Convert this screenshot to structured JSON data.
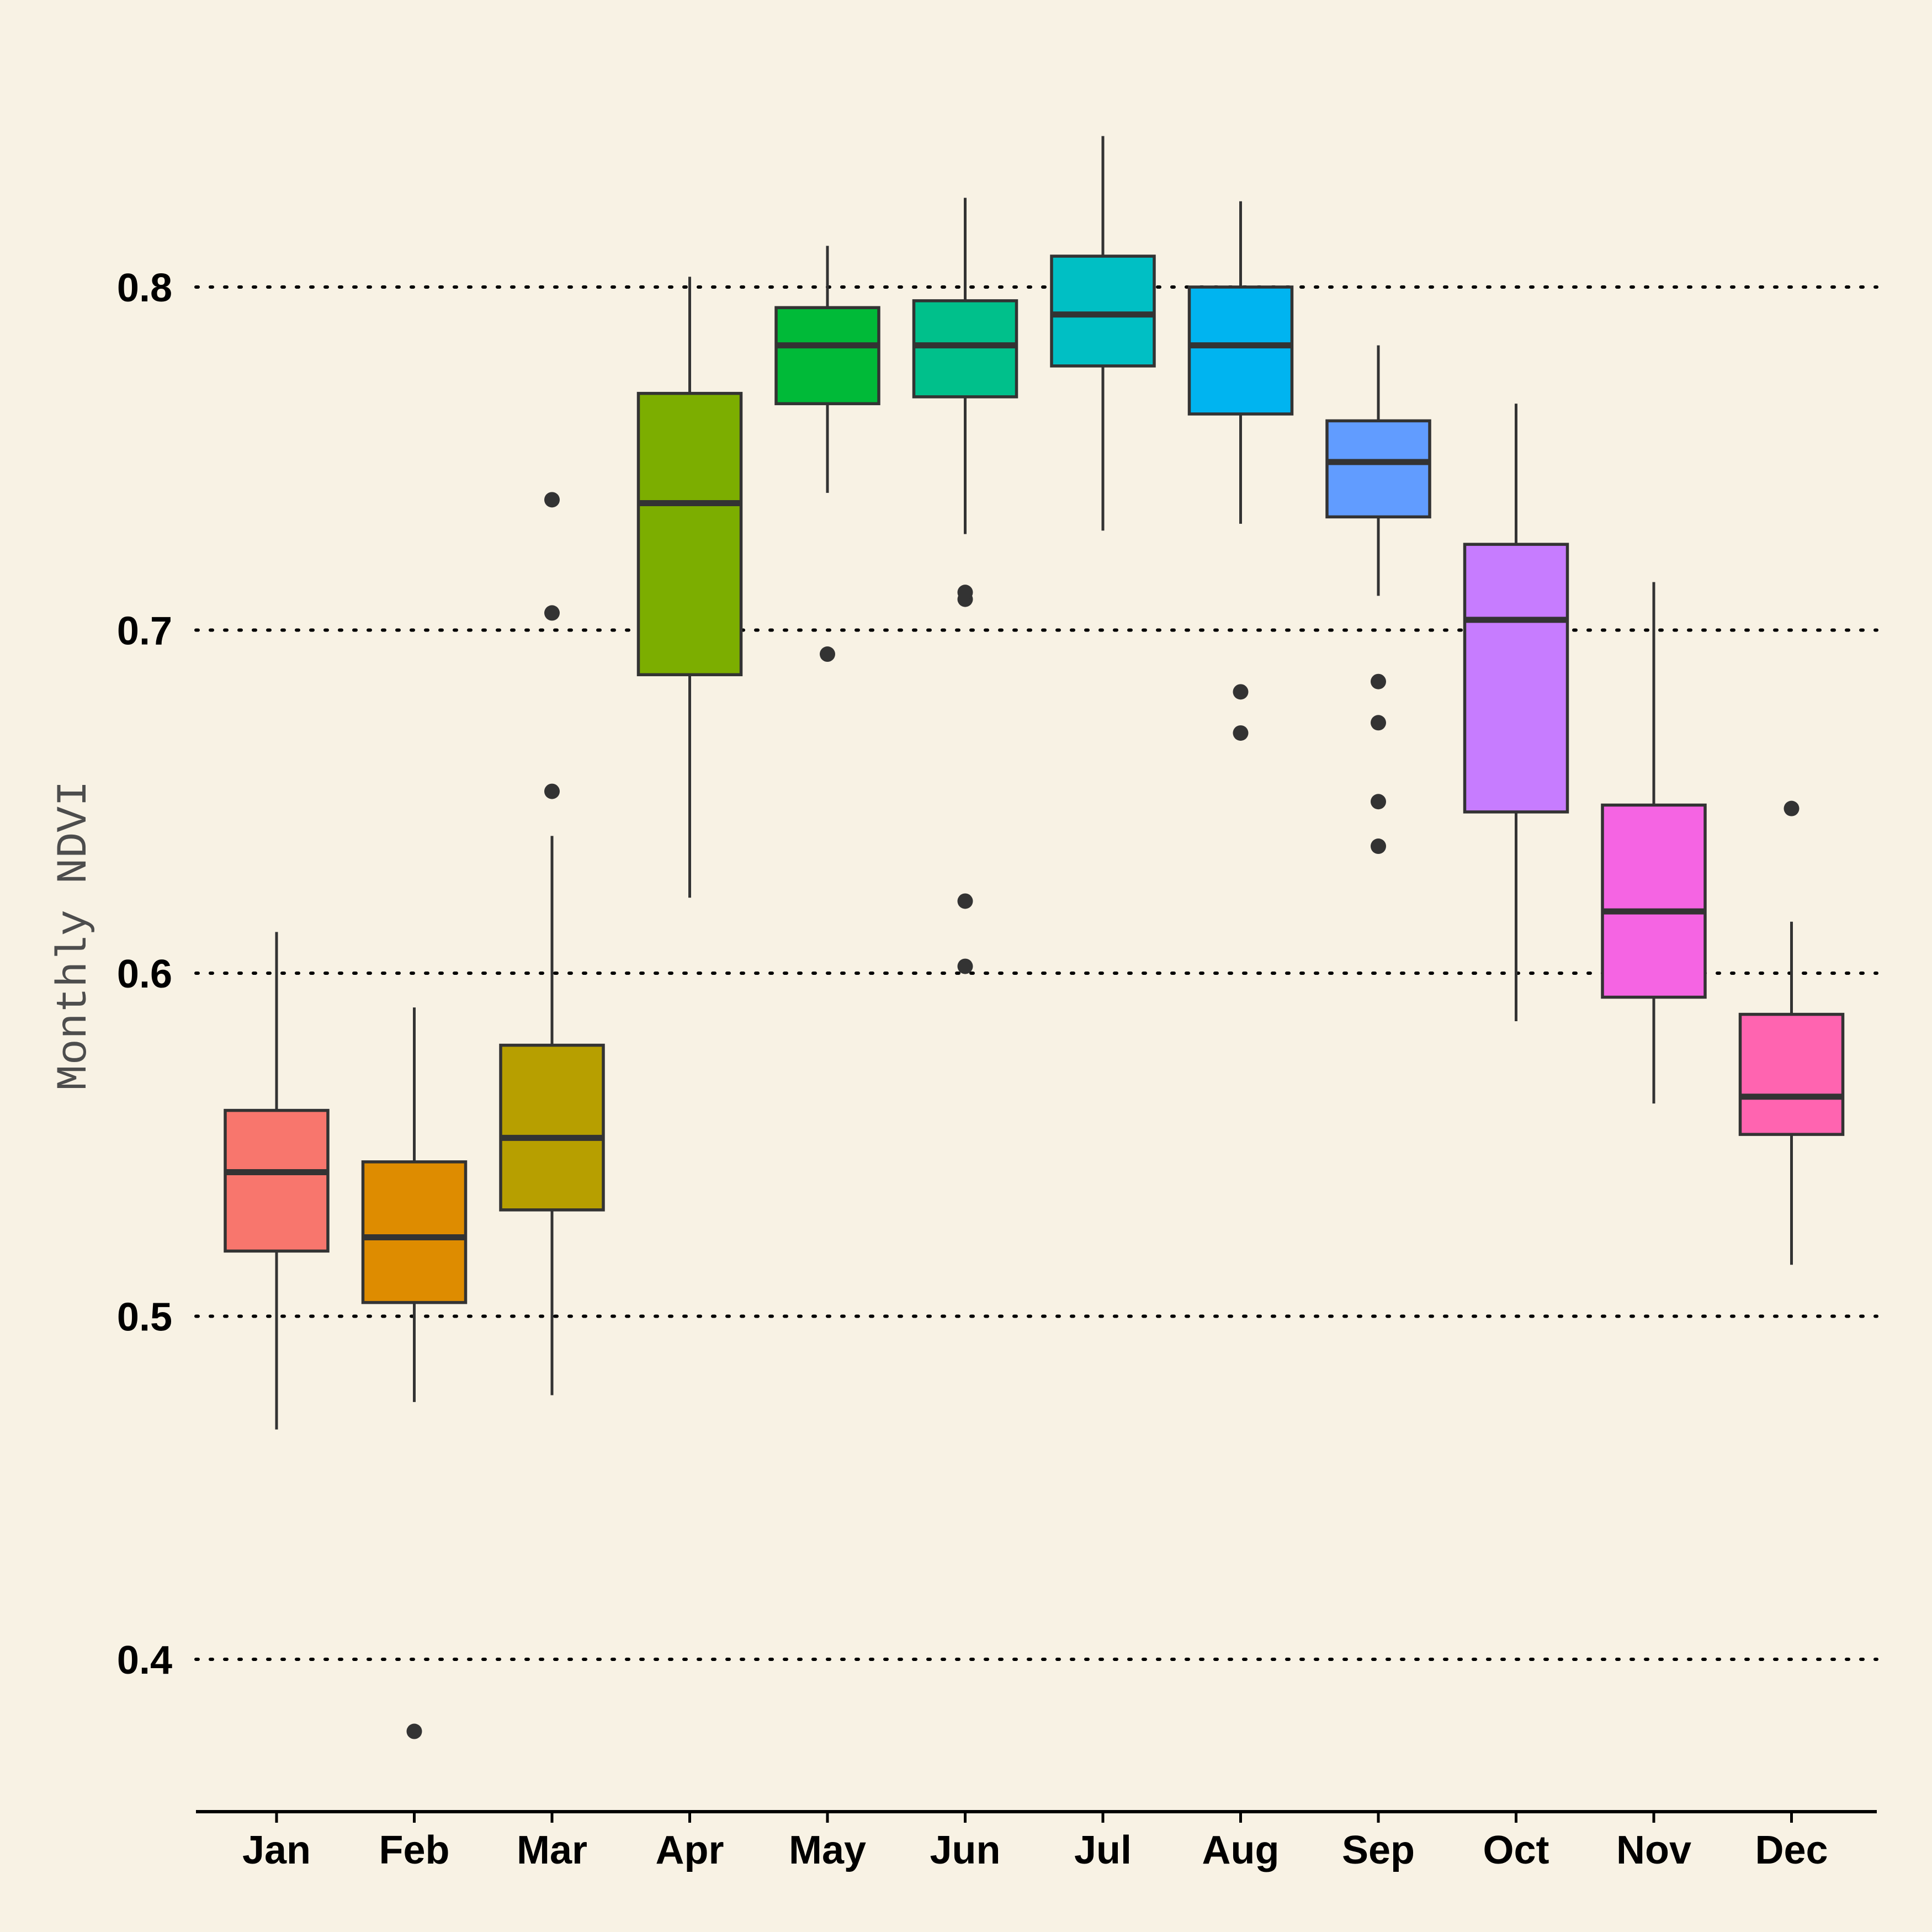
{
  "chart_data": {
    "type": "boxplot",
    "title": "",
    "xlabel": "",
    "ylabel": "Monthly NDVI",
    "ylim": [
      0.355,
      0.855
    ],
    "yticks": [
      0.4,
      0.5,
      0.6,
      0.7,
      0.8
    ],
    "ytick_labels": [
      "0.4",
      "0.5",
      "0.6",
      "0.7",
      "0.8"
    ],
    "grid": "horizontal dotted",
    "legend": "none",
    "categories": [
      "Jan",
      "Feb",
      "Mar",
      "Apr",
      "May",
      "Jun",
      "Jul",
      "Aug",
      "Sep",
      "Oct",
      "Nov",
      "Dec"
    ],
    "boxes": [
      {
        "month": "Jan",
        "whisker_low": 0.467,
        "q1": 0.519,
        "median": 0.542,
        "q3": 0.56,
        "whisker_high": 0.612,
        "outliers": [],
        "color": "#F8766D"
      },
      {
        "month": "Feb",
        "whisker_low": 0.475,
        "q1": 0.504,
        "median": 0.523,
        "q3": 0.545,
        "whisker_high": 0.59,
        "outliers": [
          0.379
        ],
        "color": "#DE8C00"
      },
      {
        "month": "Mar",
        "whisker_low": 0.477,
        "q1": 0.531,
        "median": 0.552,
        "q3": 0.579,
        "whisker_high": 0.64,
        "outliers": [
          0.653,
          0.705,
          0.738
        ],
        "color": "#B79F00"
      },
      {
        "month": "Apr",
        "whisker_low": 0.622,
        "q1": 0.687,
        "median": 0.737,
        "q3": 0.769,
        "whisker_high": 0.803,
        "outliers": [],
        "color": "#7CAE00"
      },
      {
        "month": "May",
        "whisker_low": 0.74,
        "q1": 0.766,
        "median": 0.783,
        "q3": 0.794,
        "whisker_high": 0.812,
        "outliers": [
          0.693
        ],
        "color": "#00BA38"
      },
      {
        "month": "Jun",
        "whisker_low": 0.728,
        "q1": 0.768,
        "median": 0.783,
        "q3": 0.796,
        "whisker_high": 0.826,
        "outliers": [
          0.602,
          0.621,
          0.709,
          0.711
        ],
        "color": "#00C08B"
      },
      {
        "month": "Jul",
        "whisker_low": 0.729,
        "q1": 0.777,
        "median": 0.792,
        "q3": 0.809,
        "whisker_high": 0.844,
        "outliers": [],
        "color": "#00BFC4"
      },
      {
        "month": "Aug",
        "whisker_low": 0.731,
        "q1": 0.763,
        "median": 0.783,
        "q3": 0.8,
        "whisker_high": 0.825,
        "outliers": [
          0.67,
          0.682
        ],
        "color": "#00B4F0"
      },
      {
        "month": "Sep",
        "whisker_low": 0.71,
        "q1": 0.733,
        "median": 0.749,
        "q3": 0.761,
        "whisker_high": 0.783,
        "outliers": [
          0.637,
          0.65,
          0.673,
          0.685
        ],
        "color": "#619CFF"
      },
      {
        "month": "Oct",
        "whisker_low": 0.586,
        "q1": 0.647,
        "median": 0.703,
        "q3": 0.725,
        "whisker_high": 0.766,
        "outliers": [],
        "color": "#C77CFF"
      },
      {
        "month": "Nov",
        "whisker_low": 0.562,
        "q1": 0.593,
        "median": 0.618,
        "q3": 0.649,
        "whisker_high": 0.714,
        "outliers": [],
        "color": "#F564E3"
      },
      {
        "month": "Dec",
        "whisker_low": 0.515,
        "q1": 0.553,
        "median": 0.564,
        "q3": 0.588,
        "whisker_high": 0.615,
        "outliers": [
          0.648
        ],
        "color": "#FF64B0"
      }
    ]
  }
}
